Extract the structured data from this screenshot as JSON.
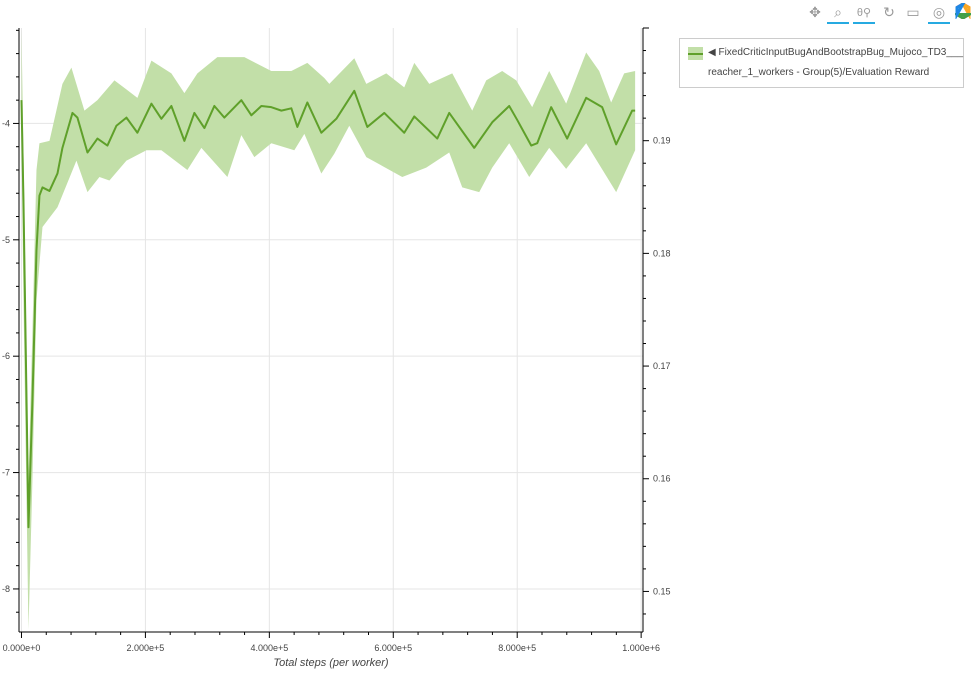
{
  "toolbar": {
    "tools": [
      {
        "name": "pan",
        "icon": "pan-icon",
        "glyph": "✥",
        "active": false
      },
      {
        "name": "box-zoom",
        "icon": "box-zoom-icon",
        "glyph": "⌕",
        "active": true
      },
      {
        "name": "wheel-zoom",
        "icon": "wheel-zoom-icon",
        "glyph": "θ⚲",
        "active": true
      },
      {
        "name": "reset",
        "icon": "reset-icon",
        "glyph": "↻",
        "active": false
      },
      {
        "name": "save",
        "icon": "save-icon",
        "glyph": "▭",
        "active": false
      },
      {
        "name": "hover",
        "icon": "hover-icon",
        "glyph": "◎",
        "active": true
      },
      {
        "name": "bokeh-logo",
        "icon": "bokeh-logo-icon",
        "glyph": "",
        "active": false
      }
    ]
  },
  "legend": {
    "line1": "◀ FixedCriticInputBugAndBootstrapBug_Mujoco_TD3___",
    "line2": "reacher_1_workers - Group(5)/Evaluation Reward"
  },
  "chart_data": {
    "type": "line",
    "xlabel": "Total steps (per worker)",
    "ylabel": "",
    "xlim": [
      -4000,
      1003000
    ],
    "ylim": [
      -8.37,
      -3.18
    ],
    "y2lim": [
      0.1464,
      0.2
    ],
    "grid": true,
    "legend_position": "outside-right",
    "x_ticks": [
      0,
      200000,
      400000,
      600000,
      800000,
      1000000
    ],
    "x_tick_labels": [
      "0.000e+0",
      "2.000e+5",
      "4.000e+5",
      "6.000e+5",
      "8.000e+5",
      "1.000e+6"
    ],
    "y_ticks": [
      -8,
      -7,
      -6,
      -5,
      -4
    ],
    "y_tick_labels": [
      "-8",
      "-7",
      "-6",
      "-5",
      "-4"
    ],
    "y2_ticks": [
      0.15,
      0.16,
      0.17,
      0.18,
      0.19
    ],
    "y2_tick_labels": [
      "0.15",
      "0.16",
      "0.17",
      "0.18",
      "0.19"
    ],
    "colors": {
      "line": "#5fa02a",
      "band": "#c2dfa8"
    },
    "series": [
      {
        "name": "FixedCriticInputBugAndBootstrapBug_Mujoco_TD3___reacher_1_workers - Group(5)/Evaluation Reward",
        "x": [
          0,
          3200,
          11300,
          17700,
          24200,
          29000,
          33900,
          45200,
          58100,
          66100,
          82300,
          90300,
          106500,
          122600,
          138700,
          153200,
          169400,
          187100,
          209700,
          225800,
          241900,
          262900,
          279000,
          295200,
          311300,
          327400,
          354800,
          371000,
          387100,
          403200,
          419400,
          435500,
          445200,
          461300,
          483900,
          508100,
          537100,
          558100,
          585500,
          617700,
          633900,
          671000,
          690300,
          730600,
          759700,
          787100,
          800000,
          822600,
          832300,
          854800,
          880600,
          911300,
          937100,
          959700,
          985500,
          990300
        ],
        "values": [
          -3.8,
          -4.66,
          -7.47,
          -6.38,
          -5.09,
          -4.62,
          -4.55,
          -4.58,
          -4.43,
          -4.21,
          -3.91,
          -3.95,
          -4.25,
          -4.13,
          -4.19,
          -4.02,
          -3.95,
          -4.08,
          -3.83,
          -3.96,
          -3.85,
          -4.15,
          -3.91,
          -4.04,
          -3.85,
          -3.95,
          -3.8,
          -3.93,
          -3.85,
          -3.86,
          -3.89,
          -3.87,
          -4.03,
          -3.82,
          -4.08,
          -3.96,
          -3.72,
          -4.03,
          -3.91,
          -4.08,
          -3.94,
          -4.13,
          -3.91,
          -4.21,
          -3.99,
          -3.85,
          -3.97,
          -4.19,
          -4.17,
          -3.86,
          -4.13,
          -3.78,
          -3.86,
          -4.18,
          -3.89,
          -3.89
        ],
        "band_upper": {
          "x": [
            0,
            3200,
            11300,
            17700,
            24200,
            29000,
            45200,
            66100,
            80600,
            101600,
            122600,
            150000,
            187100,
            209700,
            241900,
            262900,
            283900,
            316100,
            359700,
            403200,
            435500,
            461300,
            488700,
            496800,
            537100,
            556500,
            588700,
            617700,
            633900,
            658100,
            695200,
            727400,
            750000,
            775800,
            798400,
            824200,
            851600,
            879000,
            911300,
            932300,
            951600,
            972600,
            990300
          ],
          "values": [
            -3.2,
            -4.23,
            -7.06,
            -5.78,
            -4.4,
            -4.17,
            -4.15,
            -3.66,
            -3.52,
            -3.89,
            -3.8,
            -3.63,
            -3.78,
            -3.46,
            -3.57,
            -3.74,
            -3.57,
            -3.43,
            -3.43,
            -3.55,
            -3.55,
            -3.48,
            -3.61,
            -3.66,
            -3.44,
            -3.66,
            -3.57,
            -3.69,
            -3.48,
            -3.66,
            -3.57,
            -3.89,
            -3.63,
            -3.55,
            -3.63,
            -3.86,
            -3.55,
            -3.83,
            -3.39,
            -3.55,
            -3.82,
            -3.57,
            -3.55
          ]
        },
        "band_lower": {
          "x": [
            0,
            3200,
            11300,
            17700,
            24200,
            33900,
            58100,
            88700,
            106500,
            125800,
            141900,
            169400,
            201600,
            225800,
            267700,
            290300,
            332300,
            354800,
            375800,
            403200,
            440300,
            456500,
            483900,
            504800,
            529000,
            556500,
            614500,
            653200,
            690300,
            711300,
            738700,
            759700,
            787100,
            819400,
            851600,
            879000,
            911300,
            959700,
            990300
          ],
          "values": [
            -4.23,
            -5.52,
            -8.35,
            -7.06,
            -5.52,
            -4.89,
            -4.72,
            -4.32,
            -4.59,
            -4.46,
            -4.49,
            -4.32,
            -4.23,
            -4.23,
            -4.4,
            -4.21,
            -4.46,
            -4.1,
            -4.29,
            -4.17,
            -4.23,
            -4.09,
            -4.43,
            -4.26,
            -4.02,
            -4.29,
            -4.46,
            -4.38,
            -4.25,
            -4.55,
            -4.59,
            -4.38,
            -4.17,
            -4.46,
            -4.21,
            -4.39,
            -4.17,
            -4.59,
            -4.23
          ]
        }
      }
    ]
  }
}
